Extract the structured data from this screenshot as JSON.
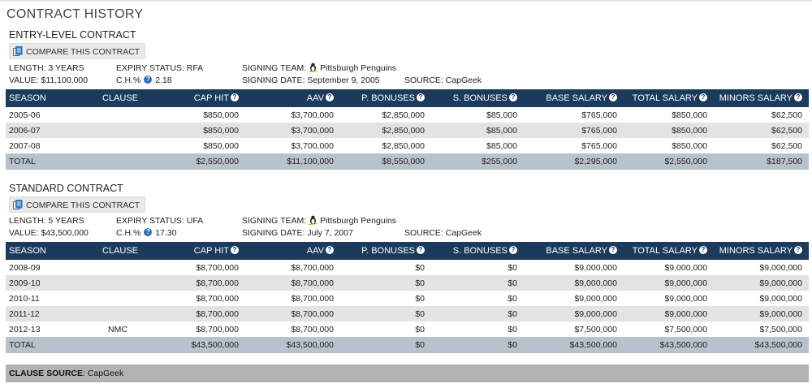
{
  "page_title": "CONTRACT HISTORY",
  "columns": [
    "SEASON",
    "CLAUSE",
    "CAP HIT",
    "AAV",
    "P. BONUSES",
    "S. BONUSES",
    "BASE SALARY",
    "TOTAL SALARY",
    "MINORS SALARY"
  ],
  "contracts": [
    {
      "title": "ENTRY-LEVEL CONTRACT",
      "compare_label": "COMPARE THIS CONTRACT",
      "length": "LENGTH: 3 YEARS",
      "value": "VALUE: $11,100,000",
      "expiry": "EXPIRY STATUS: RFA",
      "ch_label": "C.H.%",
      "ch_value": "2.18",
      "signing_team_label": "SIGNING TEAM:",
      "signing_team": "Pittsburgh Penguins",
      "signing_date": "SIGNING DATE: September 9, 2005",
      "source": "SOURCE: CapGeek",
      "rows": [
        {
          "season": "2005-06",
          "clause": "",
          "cap_hit": "$850,000",
          "aav": "$3,700,000",
          "p_bonuses": "$2,850,000",
          "s_bonuses": "$85,000",
          "base_salary": "$765,000",
          "total_salary": "$850,000",
          "minors_salary": "$62,500"
        },
        {
          "season": "2006-07",
          "clause": "",
          "cap_hit": "$850,000",
          "aav": "$3,700,000",
          "p_bonuses": "$2,850,000",
          "s_bonuses": "$85,000",
          "base_salary": "$765,000",
          "total_salary": "$850,000",
          "minors_salary": "$62,500"
        },
        {
          "season": "2007-08",
          "clause": "",
          "cap_hit": "$850,000",
          "aav": "$3,700,000",
          "p_bonuses": "$2,850,000",
          "s_bonuses": "$85,000",
          "base_salary": "$765,000",
          "total_salary": "$850,000",
          "minors_salary": "$62,500"
        }
      ],
      "total": {
        "season": "TOTAL",
        "clause": "",
        "cap_hit": "$2,550,000",
        "aav": "$11,100,000",
        "p_bonuses": "$8,550,000",
        "s_bonuses": "$255,000",
        "base_salary": "$2,295,000",
        "total_salary": "$2,550,000",
        "minors_salary": "$187,500"
      }
    },
    {
      "title": "STANDARD CONTRACT",
      "compare_label": "COMPARE THIS CONTRACT",
      "length": "LENGTH: 5 YEARS",
      "value": "VALUE: $43,500,000",
      "expiry": "EXPIRY STATUS: UFA",
      "ch_label": "C.H.%",
      "ch_value": "17.30",
      "signing_team_label": "SIGNING TEAM:",
      "signing_team": "Pittsburgh Penguins",
      "signing_date": "SIGNING DATE: July 7, 2007",
      "source": "SOURCE: CapGeek",
      "rows": [
        {
          "season": "2008-09",
          "clause": "",
          "cap_hit": "$8,700,000",
          "aav": "$8,700,000",
          "p_bonuses": "$0",
          "s_bonuses": "$0",
          "base_salary": "$9,000,000",
          "total_salary": "$9,000,000",
          "minors_salary": "$9,000,000"
        },
        {
          "season": "2009-10",
          "clause": "",
          "cap_hit": "$8,700,000",
          "aav": "$8,700,000",
          "p_bonuses": "$0",
          "s_bonuses": "$0",
          "base_salary": "$9,000,000",
          "total_salary": "$9,000,000",
          "minors_salary": "$9,000,000"
        },
        {
          "season": "2010-11",
          "clause": "",
          "cap_hit": "$8,700,000",
          "aav": "$8,700,000",
          "p_bonuses": "$0",
          "s_bonuses": "$0",
          "base_salary": "$9,000,000",
          "total_salary": "$9,000,000",
          "minors_salary": "$9,000,000"
        },
        {
          "season": "2011-12",
          "clause": "",
          "cap_hit": "$8,700,000",
          "aav": "$8,700,000",
          "p_bonuses": "$0",
          "s_bonuses": "$0",
          "base_salary": "$9,000,000",
          "total_salary": "$9,000,000",
          "minors_salary": "$9,000,000"
        },
        {
          "season": "2012-13",
          "clause": "NMC",
          "cap_hit": "$8,700,000",
          "aav": "$8,700,000",
          "p_bonuses": "$0",
          "s_bonuses": "$0",
          "base_salary": "$7,500,000",
          "total_salary": "$7,500,000",
          "minors_salary": "$7,500,000"
        }
      ],
      "total": {
        "season": "TOTAL",
        "clause": "",
        "cap_hit": "$43,500,000",
        "aav": "$43,500,000",
        "p_bonuses": "$0",
        "s_bonuses": "$0",
        "base_salary": "$43,500,000",
        "total_salary": "$43,500,000",
        "minors_salary": "$43,500,000"
      }
    }
  ],
  "clause_source_label": "CLAUSE SOURCE",
  "clause_source_value": ": CapGeek",
  "colors": {
    "header_bg": "#1b3a5c",
    "total_bg": "#b8c2cc",
    "alt_row": "#e3e3e3",
    "clause_bar": "#b3b3b3",
    "help_icon": "#2a6fb5"
  },
  "icons": {
    "compare": "compare-icon",
    "help": "question-circle-icon",
    "team": "penguin-icon"
  }
}
